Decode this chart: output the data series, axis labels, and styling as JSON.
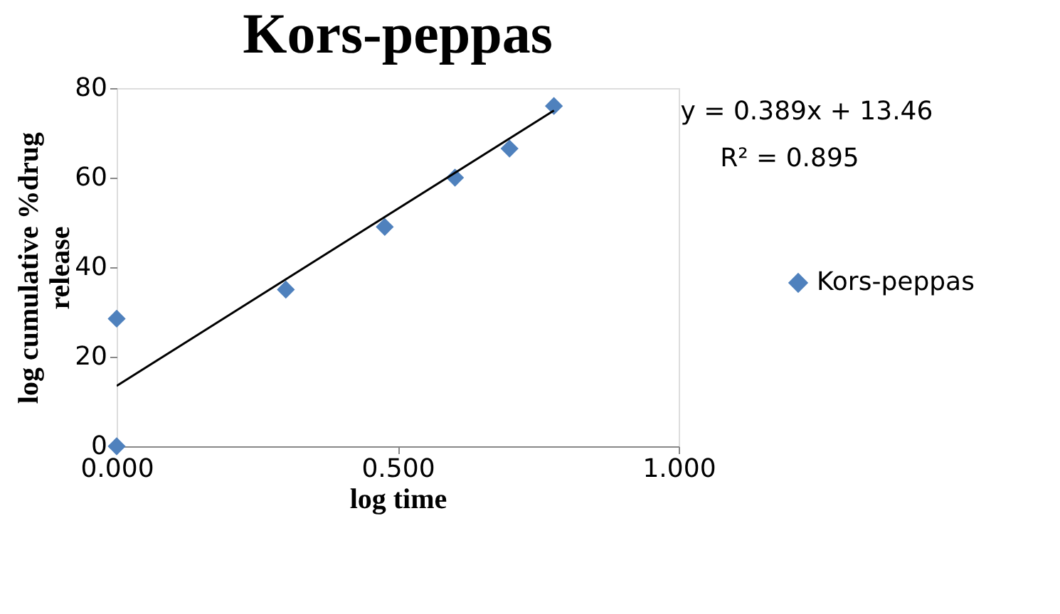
{
  "chart_data": {
    "type": "scatter",
    "title": "Kors-peppas",
    "xlabel": "log time",
    "ylabel": "log cumulative %drug release",
    "annotations": [
      "y = 0.389x + 13.46",
      "R² = 0.895"
    ],
    "xlim": [
      0,
      1
    ],
    "xticks": [
      {
        "value": 0,
        "label": "0.000"
      },
      {
        "value": 0.5,
        "label": "0.500"
      },
      {
        "value": 1,
        "label": "1.000"
      }
    ],
    "ylim": [
      0,
      80
    ],
    "yticks": [
      0,
      20,
      40,
      60,
      80
    ],
    "grid": false,
    "legend": "right",
    "marker": "diamond",
    "series": [
      {
        "name": "Kors-peppas",
        "color": "#4f81bd",
        "x": [
          0,
          0,
          0.301,
          0.477,
          0.602,
          0.699,
          0.778
        ],
        "values": [
          0,
          28.5,
          35,
          49,
          60,
          66.5,
          76
        ]
      },
      {
        "type": "line",
        "color": "#000000",
        "x": [
          0,
          0.778
        ],
        "values": [
          13.5,
          75
        ],
        "line_style": "solid",
        "marker": "none"
      }
    ]
  }
}
